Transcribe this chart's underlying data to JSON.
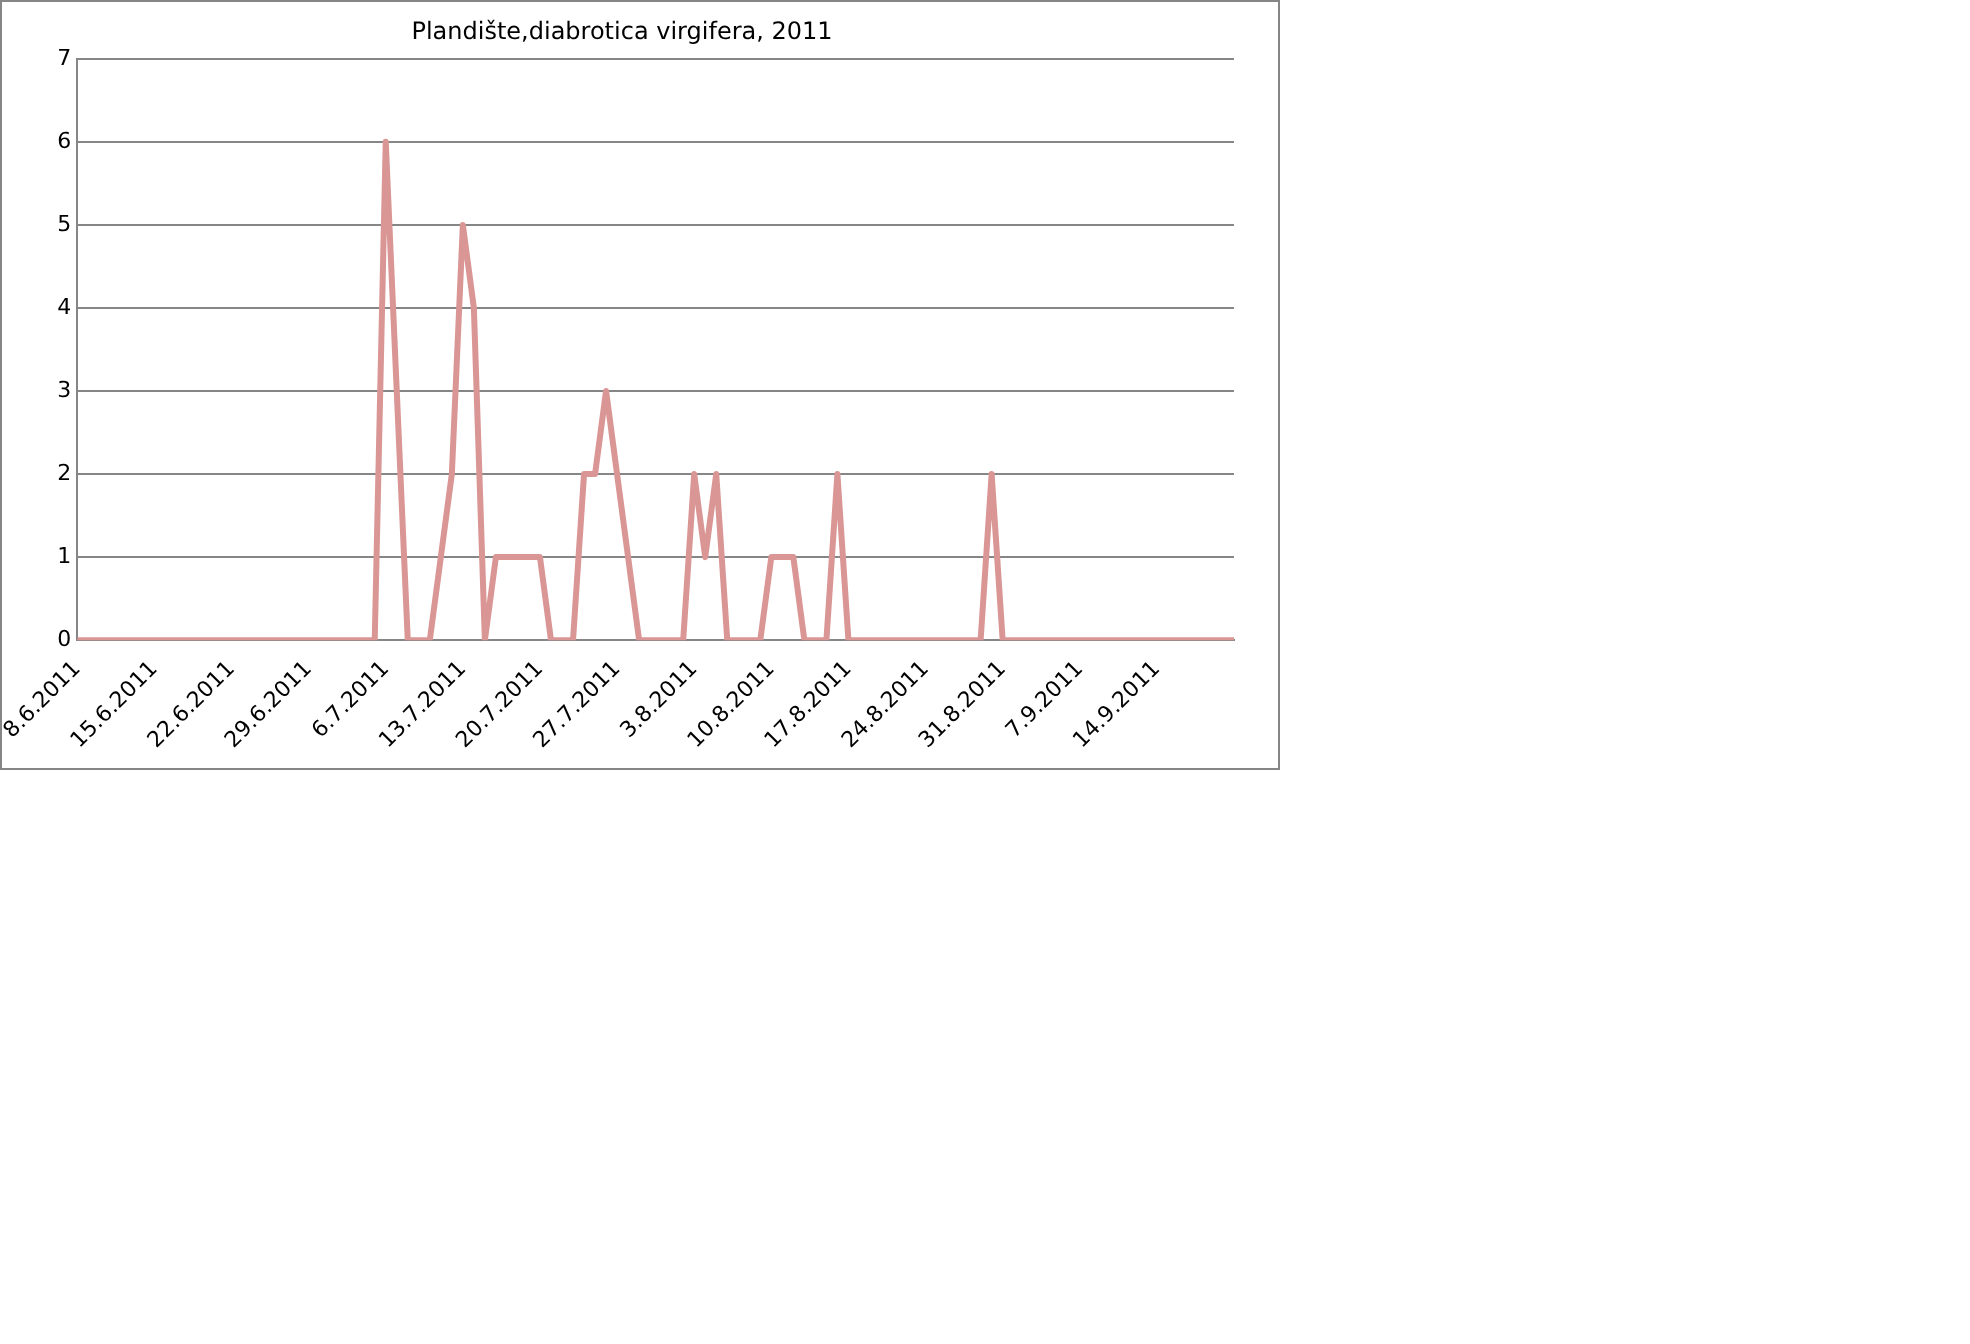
{
  "chart_data": {
    "type": "line",
    "title": "Plandište,diabrotica virgifera, 2011",
    "x": [
      "2011-06-08",
      "2011-07-05",
      "2011-07-06",
      "2011-07-07",
      "2011-07-08",
      "2011-07-10",
      "2011-07-11",
      "2011-07-12",
      "2011-07-13",
      "2011-07-14",
      "2011-07-15",
      "2011-07-16",
      "2011-07-20",
      "2011-07-21",
      "2011-07-23",
      "2011-07-24",
      "2011-07-25",
      "2011-07-26",
      "2011-07-29",
      "2011-08-02",
      "2011-08-03",
      "2011-08-04",
      "2011-08-05",
      "2011-08-06",
      "2011-08-09",
      "2011-08-10",
      "2011-08-12",
      "2011-08-13",
      "2011-08-15",
      "2011-08-16",
      "2011-08-17",
      "2011-08-29",
      "2011-08-30",
      "2011-08-31",
      "2011-09-21"
    ],
    "series": [
      {
        "color": "#d99694",
        "values": [
          0,
          0,
          6,
          3,
          0,
          0,
          1,
          2,
          5,
          4,
          0,
          1,
          1,
          0,
          0,
          2,
          2,
          3,
          0,
          0,
          2,
          1,
          2,
          0,
          0,
          1,
          1,
          0,
          0,
          2,
          0,
          0,
          2,
          0,
          0
        ]
      }
    ],
    "xlim": [
      "2011-06-08",
      "2011-09-21"
    ],
    "xticks": [
      {
        "value": "2011-06-08",
        "label": "8.6.2011"
      },
      {
        "value": "2011-06-15",
        "label": "15.6.2011"
      },
      {
        "value": "2011-06-22",
        "label": "22.6.2011"
      },
      {
        "value": "2011-06-29",
        "label": "29.6.2011"
      },
      {
        "value": "2011-07-06",
        "label": "6.7.2011"
      },
      {
        "value": "2011-07-13",
        "label": "13.7.2011"
      },
      {
        "value": "2011-07-20",
        "label": "20.7.2011"
      },
      {
        "value": "2011-07-27",
        "label": "27.7.2011"
      },
      {
        "value": "2011-08-03",
        "label": "3.8.2011"
      },
      {
        "value": "2011-08-10",
        "label": "10.8.2011"
      },
      {
        "value": "2011-08-17",
        "label": "17.8.2011"
      },
      {
        "value": "2011-08-24",
        "label": "24.8.2011"
      },
      {
        "value": "2011-08-31",
        "label": "31.8.2011"
      },
      {
        "value": "2011-09-07",
        "label": "7.9.2011"
      },
      {
        "value": "2011-09-14",
        "label": "14.9.2011"
      }
    ],
    "ylim": [
      0,
      7
    ],
    "yticks": [
      0,
      1,
      2,
      3,
      4,
      5,
      6,
      7
    ],
    "grid": "y",
    "legend": false,
    "marker": "none",
    "line_style": "solid"
  }
}
